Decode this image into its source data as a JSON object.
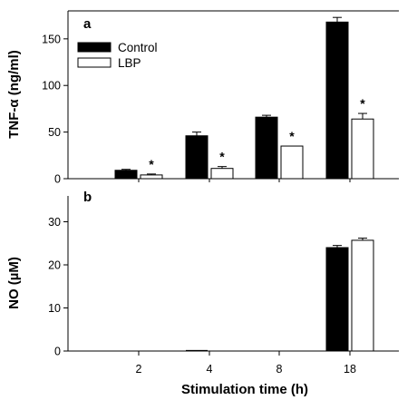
{
  "chart_data": [
    {
      "panel": "a",
      "type": "bar",
      "ylabel": "TNF-α (ng/ml)",
      "ylim": [
        0,
        180
      ],
      "yticks": [
        0,
        50,
        100,
        150
      ],
      "categories": [
        "2",
        "4",
        "8",
        "18"
      ],
      "legend": {
        "position": "top-left"
      },
      "series": [
        {
          "name": "Control",
          "values": [
            9,
            46,
            66,
            168
          ],
          "errors": [
            1,
            4,
            2,
            5
          ],
          "fill": "#000000"
        },
        {
          "name": "LBP",
          "values": [
            4,
            11,
            35,
            64
          ],
          "errors": [
            1,
            2,
            0,
            6
          ],
          "fill": "#ffffff"
        }
      ],
      "significance": [
        false,
        true,
        false,
        true,
        false,
        true,
        false,
        true
      ],
      "significance_marker": "*"
    },
    {
      "panel": "b",
      "type": "bar",
      "ylabel": "NO (µM)",
      "ylim": [
        0,
        36
      ],
      "yticks": [
        0,
        10,
        20,
        30
      ],
      "categories": [
        "2",
        "4",
        "8",
        "18"
      ],
      "series": [
        {
          "name": "Control",
          "values": [
            0,
            0,
            0,
            24
          ],
          "errors": [
            0,
            0,
            0,
            0.5
          ],
          "fill": "#000000"
        },
        {
          "name": "LBP",
          "values": [
            0,
            0,
            0,
            25.7
          ],
          "errors": [
            0,
            0,
            0,
            0.5
          ],
          "fill": "#ffffff"
        }
      ]
    }
  ],
  "xlabel": "Stimulation time (h)"
}
